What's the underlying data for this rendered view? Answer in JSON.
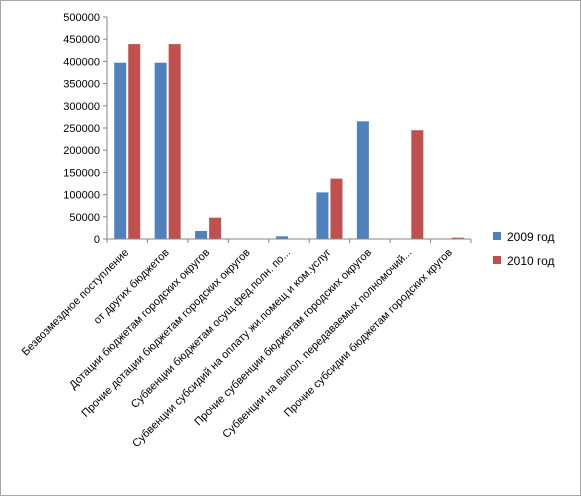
{
  "chart_data": {
    "type": "bar",
    "title": "",
    "xlabel": "",
    "ylabel": "",
    "ylim": [
      0,
      500000
    ],
    "yticks": [
      "0",
      "50000",
      "100000",
      "150000",
      "200000",
      "250000",
      "300000",
      "350000",
      "400000",
      "450000",
      "500000"
    ],
    "grid": false,
    "legend_position": "right",
    "categories": [
      "Безвозмездное поступление",
      "от других бюджетов",
      "Дотации бюджетам городских округов",
      "Прочие дотации бюджетам городских округов",
      "Субвенции бюджетам осущ.фед.полн. по...",
      "Субвенции субсидий на оплату жи.помещ и ком.услуг",
      "Прочие субвенции бюджетам городских округов",
      "Субвенции на выпол. передаваемых полномочий...",
      "Прочие субсидии бюджетам городских кругов"
    ],
    "series": [
      {
        "name": "2009 год",
        "color": "#4f81bd",
        "values": [
          397000,
          397000,
          18000,
          0,
          6000,
          105000,
          265000,
          0,
          0
        ]
      },
      {
        "name": "2010 год",
        "color": "#c0504d",
        "values": [
          439000,
          439000,
          48000,
          0,
          0,
          136000,
          0,
          245000,
          3000
        ]
      }
    ]
  }
}
